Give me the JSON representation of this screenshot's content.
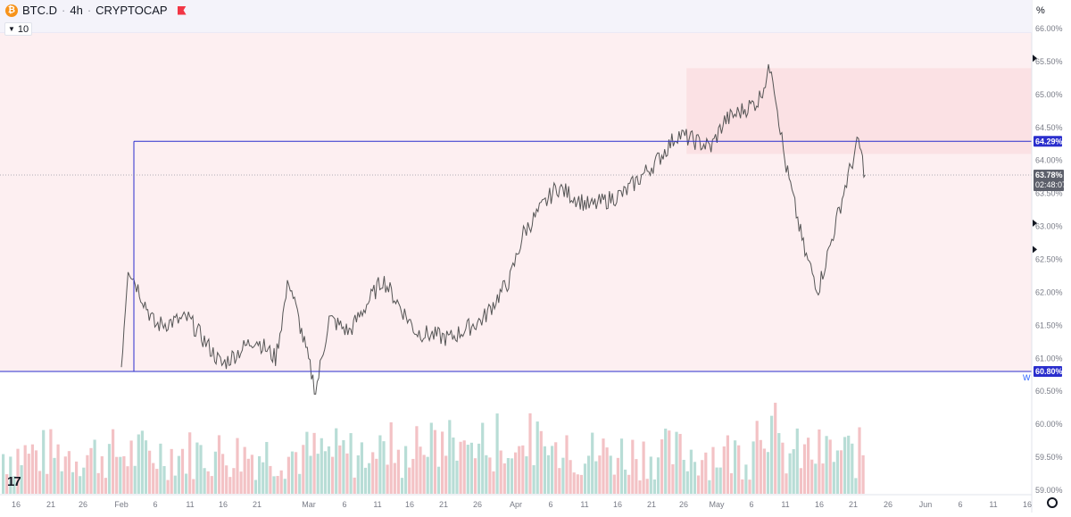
{
  "header": {
    "symbol": "BTC.D",
    "interval": "4h",
    "exchange": "CRYPTOCAP",
    "separator": "·",
    "indicator_value": "10",
    "scale_mode": "%"
  },
  "colors": {
    "price_line": "#555555",
    "level_line": "#2a2ecd",
    "zone_fill": "#fdeff1",
    "vol_up": "#b8ddd6",
    "vol_down": "#f3c2c5",
    "last_price_tag": "#5d606b"
  },
  "chart_data": {
    "type": "candlestick",
    "title": "BTC.D · 4h · CRYPTOCAP",
    "ylim": [
      59.0,
      66.0
    ],
    "y_ticks": [
      "66.00%",
      "65.50%",
      "65.00%",
      "64.50%",
      "64.00%",
      "63.50%",
      "63.00%",
      "62.50%",
      "62.00%",
      "61.50%",
      "61.00%",
      "60.50%",
      "60.00%",
      "59.50%",
      "59.00%"
    ],
    "x_ticks": [
      "16",
      "21",
      "26",
      "Feb",
      "6",
      "11",
      "16",
      "21",
      "Mar",
      "6",
      "11",
      "16",
      "21",
      "26",
      "Apr",
      "6",
      "11",
      "16",
      "21",
      "26",
      "May",
      "6",
      "11",
      "16",
      "21",
      "26",
      "Jun",
      "6",
      "11",
      "16"
    ],
    "levels": [
      {
        "label": "64.29%",
        "value": 64.29
      },
      {
        "label": "60.80%",
        "value": 60.8
      }
    ],
    "last_price": {
      "label": "63.78%",
      "value": 63.78,
      "countdown": "02:48:07"
    },
    "marker_w": "W",
    "price_path": [
      [
        "Feb",
        60.9
      ],
      [
        "Feb+1",
        62.4
      ],
      [
        "Feb 6",
        61.5
      ],
      [
        "Feb 11",
        61.6
      ],
      [
        "Feb 16",
        60.9
      ],
      [
        "Feb 21",
        61.3
      ],
      [
        "Feb 24",
        61.0
      ],
      [
        "Feb 26",
        62.2
      ],
      [
        "Mar",
        60.5
      ],
      [
        "Mar 3",
        61.6
      ],
      [
        "Mar 6",
        61.4
      ],
      [
        "Mar 11",
        62.2
      ],
      [
        "Mar 16",
        61.4
      ],
      [
        "Mar 21",
        61.3
      ],
      [
        "Mar 26",
        61.6
      ],
      [
        "Mar 30",
        62.2
      ],
      [
        "Apr",
        62.9
      ],
      [
        "Apr 6",
        63.6
      ],
      [
        "Apr 11",
        63.3
      ],
      [
        "Apr 16",
        63.5
      ],
      [
        "Apr 21",
        64.0
      ],
      [
        "Apr 24",
        64.4
      ],
      [
        "Apr 29",
        64.2
      ],
      [
        "May",
        64.6
      ],
      [
        "May 6",
        64.9
      ],
      [
        "May 8",
        65.45
      ],
      [
        "May 10",
        64.0
      ],
      [
        "May 13",
        62.6
      ],
      [
        "May 15",
        62.05
      ],
      [
        "May 17",
        62.8
      ],
      [
        "May 19",
        63.6
      ],
      [
        "May 21",
        64.3
      ],
      [
        "May 22",
        63.78
      ]
    ],
    "volume_note": "volume bars shown below price"
  }
}
